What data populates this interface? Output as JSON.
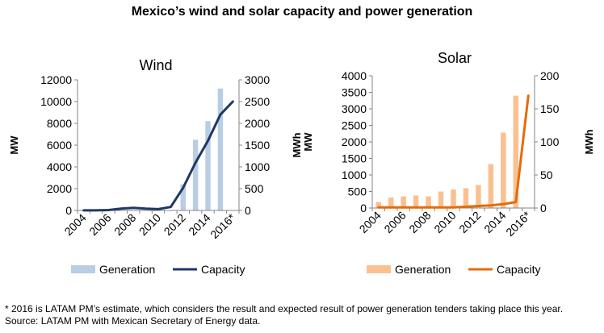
{
  "title": "Mexico’s wind and solar capacity and power generation",
  "footnote": "* 2016 is LATAM PM’s estimate, which considers the result and expected result of power generation tenders taking place this year.",
  "source": "Source: LATAM PM with Mexican Secretary of Energy data.",
  "chart_data": [
    {
      "type": "bar+line",
      "title": "Wind",
      "categories": [
        "2004",
        "2005",
        "2006",
        "2007",
        "2008",
        "2009",
        "2010",
        "2011",
        "2012",
        "2013",
        "2014",
        "2015",
        "2016*"
      ],
      "x_tick_labels": [
        "2004",
        "2006",
        "2008",
        "2010",
        "2012",
        "2014",
        "2016*"
      ],
      "ylabel_left": "MW",
      "ylabel_right": "MWh",
      "ylim_left": [
        0,
        12000
      ],
      "yticks_left": [
        0,
        2000,
        4000,
        6000,
        8000,
        10000,
        12000
      ],
      "ylim_right": [
        0,
        3000
      ],
      "yticks_right": [
        0,
        500,
        1000,
        1500,
        2000,
        2500,
        3000
      ],
      "legend_position": "bottom",
      "grid": false,
      "series": [
        {
          "name": "Generation",
          "kind": "bar",
          "axis": "left",
          "color": "#b9cde5",
          "values": [
            0,
            0,
            0,
            0,
            0,
            0,
            0,
            0,
            2400,
            6500,
            8200,
            11200,
            0
          ]
        },
        {
          "name": "Capacity",
          "kind": "line",
          "axis": "right",
          "color": "#1f3864",
          "values": [
            2,
            2,
            10,
            40,
            60,
            40,
            30,
            80,
            520,
            1100,
            1600,
            2200,
            2500
          ]
        }
      ]
    },
    {
      "type": "bar+line",
      "title": "Solar",
      "categories": [
        "2004",
        "2005",
        "2006",
        "2007",
        "2008",
        "2009",
        "2010",
        "2011",
        "2012",
        "2013",
        "2014",
        "2015",
        "2016*"
      ],
      "x_tick_labels": [
        "2004",
        "2006",
        "2008",
        "2010",
        "2012",
        "2014",
        "2016*"
      ],
      "ylabel_left": "MW",
      "ylabel_right": "MWh",
      "ylim_left": [
        0,
        4000
      ],
      "yticks_left": [
        0,
        500,
        1000,
        1500,
        2000,
        2500,
        3000,
        3500,
        4000
      ],
      "ylim_right": [
        0,
        200
      ],
      "yticks_right": [
        0,
        50,
        100,
        150,
        200
      ],
      "legend_position": "bottom",
      "grid": false,
      "series": [
        {
          "name": "Generation",
          "kind": "bar",
          "axis": "left",
          "color": "#fac090",
          "values": [
            180,
            320,
            350,
            380,
            350,
            500,
            560,
            600,
            700,
            1330,
            2280,
            3400,
            0
          ]
        },
        {
          "name": "Capacity",
          "kind": "line",
          "axis": "right",
          "color": "#e46c0a",
          "values": [
            1,
            1,
            1,
            1,
            1,
            1,
            1,
            2,
            3,
            4,
            6,
            9,
            170
          ]
        }
      ]
    }
  ]
}
